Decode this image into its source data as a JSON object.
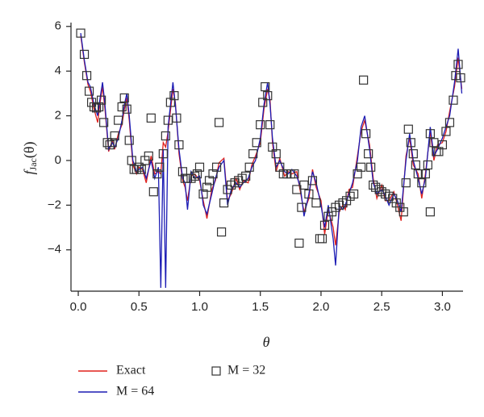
{
  "chart_data": {
    "type": "line",
    "x_label": "θ",
    "y_label": [
      "f",
      "Jac",
      "(θ)"
    ],
    "xlim": [
      -0.06,
      3.17
    ],
    "ylim": [
      -5.85,
      6.1
    ],
    "xticks": [
      {
        "value": 0,
        "label": "0.0"
      },
      0.5,
      {
        "value": 1,
        "label": "1.0"
      },
      1.5,
      {
        "value": 2,
        "label": "2.0"
      },
      2.5,
      {
        "value": 3,
        "label": "3.0"
      }
    ],
    "yticks": [
      {
        "value": -4,
        "label": "−4"
      },
      {
        "value": -2,
        "label": "−2"
      },
      0,
      2,
      4,
      6
    ],
    "series": [
      {
        "name": "Exact",
        "color": "#e0201c",
        "style": "line",
        "x": [
          0.02,
          0.05,
          0.08,
          0.1,
          0.13,
          0.16,
          0.18,
          0.2,
          0.22,
          0.25,
          0.28,
          0.3,
          0.33,
          0.36,
          0.38,
          0.4,
          0.42,
          0.45,
          0.48,
          0.5,
          0.53,
          0.56,
          0.6,
          0.63,
          0.66,
          0.68,
          0.7,
          0.72,
          0.74,
          0.78,
          0.8,
          0.83,
          0.86,
          0.88,
          0.9,
          0.93,
          0.96,
          1.0,
          1.03,
          1.06,
          1.1,
          1.13,
          1.16,
          1.2,
          1.23,
          1.26,
          1.3,
          1.33,
          1.36,
          1.4,
          1.43,
          1.46,
          1.5,
          1.53,
          1.56,
          1.58,
          1.6,
          1.63,
          1.66,
          1.7,
          1.73,
          1.76,
          1.8,
          1.83,
          1.86,
          1.9,
          1.93,
          1.96,
          2.0,
          2.03,
          2.06,
          2.1,
          2.12,
          2.15,
          2.18,
          2.2,
          2.23,
          2.26,
          2.3,
          2.33,
          2.36,
          2.4,
          2.43,
          2.46,
          2.5,
          2.53,
          2.56,
          2.6,
          2.63,
          2.66,
          2.7,
          2.73,
          2.76,
          2.8,
          2.83,
          2.86,
          2.9,
          2.93,
          2.96,
          3.0,
          3.03,
          3.06,
          3.1,
          3.13,
          3.16
        ],
        "values": [
          5.6,
          4.4,
          3.4,
          3.1,
          2.3,
          1.7,
          2.6,
          3.3,
          2.3,
          0.4,
          0.9,
          0.5,
          1.2,
          1.6,
          2.3,
          2.8,
          1.8,
          -0.2,
          -0.6,
          -0.3,
          -0.4,
          -1.0,
          0.2,
          -0.6,
          -0.5,
          -0.6,
          0.8,
          0.6,
          1.3,
          3.2,
          2.6,
          0.3,
          -0.9,
          -1.2,
          -1.8,
          -0.7,
          -0.6,
          -0.9,
          -1.8,
          -2.6,
          -1.3,
          -0.9,
          -0.1,
          0.1,
          -1.8,
          -1.5,
          -0.8,
          -1.3,
          -0.9,
          -1.0,
          -0.2,
          0.2,
          0.8,
          2.3,
          3.2,
          2.7,
          0.8,
          -0.5,
          0.1,
          -0.7,
          -0.5,
          -0.6,
          -0.5,
          -1.4,
          -2.3,
          -1.7,
          -0.4,
          -1.2,
          -1.8,
          -3.3,
          -2.2,
          -3.0,
          -3.8,
          -2.3,
          -2.0,
          -2.2,
          -1.3,
          -1.2,
          0.2,
          1.3,
          1.8,
          0.7,
          -0.8,
          -1.7,
          -1.1,
          -1.8,
          -1.8,
          -1.4,
          -2.0,
          -2.7,
          0.2,
          1.0,
          -0.2,
          -0.6,
          -1.7,
          -0.6,
          1.3,
          0.0,
          0.7,
          0.8,
          1.3,
          2.2,
          3.3,
          4.6,
          3.2
        ]
      },
      {
        "name": "M = 64",
        "color": "#1c1cb4",
        "style": "line",
        "x": [
          0.02,
          0.05,
          0.08,
          0.1,
          0.13,
          0.16,
          0.18,
          0.2,
          0.22,
          0.25,
          0.28,
          0.3,
          0.33,
          0.36,
          0.38,
          0.4,
          0.42,
          0.45,
          0.48,
          0.5,
          0.53,
          0.56,
          0.6,
          0.63,
          0.66,
          0.68,
          0.7,
          0.72,
          0.74,
          0.78,
          0.8,
          0.83,
          0.86,
          0.88,
          0.9,
          0.93,
          0.96,
          1.0,
          1.03,
          1.06,
          1.1,
          1.13,
          1.16,
          1.2,
          1.23,
          1.26,
          1.3,
          1.33,
          1.36,
          1.4,
          1.43,
          1.46,
          1.5,
          1.53,
          1.56,
          1.58,
          1.6,
          1.63,
          1.66,
          1.7,
          1.73,
          1.76,
          1.8,
          1.83,
          1.86,
          1.9,
          1.93,
          1.96,
          2.0,
          2.03,
          2.06,
          2.1,
          2.12,
          2.15,
          2.18,
          2.2,
          2.23,
          2.26,
          2.3,
          2.33,
          2.36,
          2.4,
          2.43,
          2.46,
          2.5,
          2.53,
          2.56,
          2.6,
          2.63,
          2.66,
          2.7,
          2.73,
          2.76,
          2.8,
          2.83,
          2.86,
          2.9,
          2.93,
          2.96,
          3.0,
          3.03,
          3.06,
          3.1,
          3.13,
          3.16
        ],
        "values": [
          5.7,
          4.5,
          3.5,
          3.3,
          2.5,
          2.0,
          2.8,
          3.5,
          2.5,
          0.5,
          0.8,
          0.6,
          1.0,
          1.8,
          2.5,
          3.0,
          2.0,
          0.0,
          -0.5,
          -0.4,
          -0.3,
          -0.8,
          0.0,
          -0.8,
          -0.3,
          -5.7,
          0.5,
          -5.7,
          1.5,
          3.5,
          2.5,
          0.5,
          -0.8,
          -1.0,
          -2.2,
          -0.5,
          -0.8,
          -0.7,
          -2.0,
          -2.4,
          -1.5,
          -0.8,
          -0.3,
          0.0,
          -2.0,
          -1.3,
          -1.0,
          -1.2,
          -1.0,
          -0.8,
          -0.3,
          0.0,
          1.0,
          2.5,
          3.5,
          2.5,
          1.0,
          -0.3,
          0.0,
          -0.5,
          -0.6,
          -0.4,
          -0.7,
          -1.2,
          -2.5,
          -1.5,
          -0.5,
          -1.0,
          -2.0,
          -3.0,
          -2.0,
          -3.5,
          -4.7,
          -2.0,
          -2.2,
          -2.0,
          -1.5,
          -1.0,
          0.0,
          1.5,
          2.0,
          0.5,
          -1.0,
          -1.5,
          -1.3,
          -1.6,
          -2.0,
          -1.5,
          -1.8,
          -2.3,
          0.0,
          1.2,
          0.0,
          -0.8,
          -1.5,
          -0.8,
          1.5,
          0.2,
          0.5,
          1.0,
          1.5,
          2.0,
          3.5,
          5.0,
          3.0
        ]
      },
      {
        "name": "M = 32",
        "color": "#333333",
        "style": "square",
        "x": [
          0.02,
          0.05,
          0.07,
          0.09,
          0.11,
          0.13,
          0.15,
          0.17,
          0.19,
          0.21,
          0.24,
          0.26,
          0.28,
          0.3,
          0.33,
          0.36,
          0.38,
          0.4,
          0.42,
          0.44,
          0.46,
          0.48,
          0.5,
          0.52,
          0.55,
          0.58,
          0.6,
          0.62,
          0.65,
          0.67,
          0.7,
          0.72,
          0.74,
          0.76,
          0.79,
          0.81,
          0.83,
          0.86,
          0.88,
          0.9,
          0.93,
          0.96,
          0.98,
          1.0,
          1.03,
          1.06,
          1.08,
          1.11,
          1.14,
          1.16,
          1.18,
          1.2,
          1.23,
          1.26,
          1.29,
          1.32,
          1.35,
          1.38,
          1.41,
          1.44,
          1.47,
          1.5,
          1.52,
          1.54,
          1.56,
          1.58,
          1.6,
          1.63,
          1.66,
          1.69,
          1.72,
          1.75,
          1.78,
          1.8,
          1.82,
          1.84,
          1.86,
          1.9,
          1.93,
          1.96,
          1.99,
          2.01,
          2.03,
          2.06,
          2.09,
          2.12,
          2.15,
          2.18,
          2.21,
          2.24,
          2.27,
          2.3,
          2.33,
          2.35,
          2.37,
          2.39,
          2.41,
          2.43,
          2.45,
          2.48,
          2.5,
          2.53,
          2.56,
          2.59,
          2.62,
          2.65,
          2.68,
          2.7,
          2.72,
          2.74,
          2.76,
          2.78,
          2.8,
          2.83,
          2.86,
          2.88,
          2.9,
          2.9,
          2.93,
          2.95,
          2.97,
          3.0,
          3.03,
          3.06,
          3.09,
          3.11,
          3.13,
          3.15
        ],
        "values": [
          5.7,
          4.75,
          3.8,
          3.1,
          2.6,
          2.4,
          2.35,
          2.4,
          2.7,
          1.7,
          0.8,
          0.7,
          0.8,
          1.1,
          1.8,
          2.4,
          2.8,
          2.3,
          0.9,
          0.0,
          -0.4,
          -0.4,
          -0.3,
          -0.4,
          0.0,
          0.2,
          1.9,
          -1.4,
          -0.6,
          -0.3,
          0.3,
          1.1,
          1.8,
          2.6,
          2.9,
          1.9,
          0.7,
          -0.5,
          -0.8,
          -0.8,
          -0.8,
          -0.7,
          -0.6,
          -0.3,
          -1.5,
          -1.2,
          -0.9,
          -0.6,
          -0.3,
          1.7,
          -3.2,
          -1.9,
          -1.3,
          -1.1,
          -1.0,
          -0.9,
          -0.8,
          -0.7,
          -0.3,
          0.3,
          0.8,
          1.6,
          2.6,
          3.3,
          2.9,
          1.6,
          0.6,
          0.3,
          -0.3,
          -0.6,
          -0.6,
          -0.6,
          -0.6,
          -1.3,
          -3.7,
          -2.1,
          -1.1,
          -1.5,
          -0.9,
          -1.9,
          -3.5,
          -3.5,
          -2.9,
          -2.5,
          -2.3,
          -2.1,
          -2.0,
          -1.9,
          -1.8,
          -1.6,
          -1.5,
          -0.6,
          -0.3,
          3.6,
          1.2,
          0.3,
          -0.3,
          -1.1,
          -1.2,
          -1.3,
          -1.4,
          -1.5,
          -1.6,
          -1.7,
          -1.9,
          -2.1,
          -2.3,
          -1.0,
          1.4,
          0.8,
          0.3,
          -0.2,
          -0.6,
          -1.0,
          -0.6,
          -0.2,
          1.2,
          -2.3,
          0.8,
          0.4,
          0.4,
          0.7,
          1.3,
          1.7,
          2.7,
          3.8,
          4.3,
          3.7
        ]
      }
    ]
  }
}
